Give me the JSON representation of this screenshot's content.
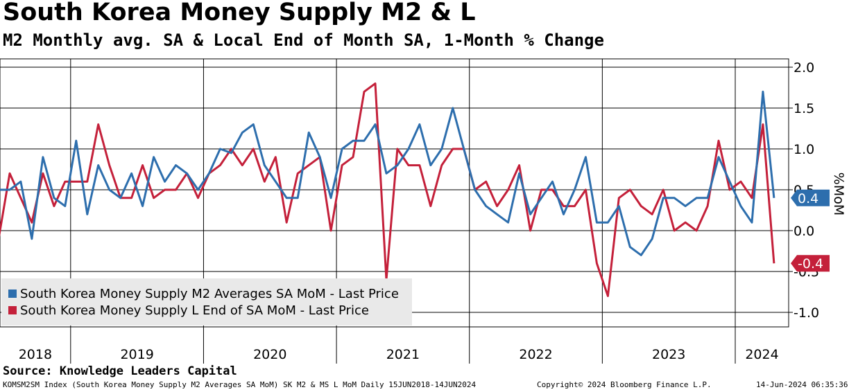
{
  "title": "South Korea Money Supply M2 & L",
  "subtitle": "M2 Monthly avg. SA & Local End of Month SA, 1-Month % Change",
  "source": "Source: Knowledge Leaders Capital",
  "footer": {
    "left": "KOMSM2SM Index (South Korea Money Supply M2 Averages SA MoM) SK M2 & MS L MoM  Daily 15JUN2018-14JUN2024",
    "center": "Copyright© 2024 Bloomberg Finance L.P.",
    "right": "14-Jun-2024 06:35:36"
  },
  "chart_data": {
    "type": "line",
    "ylabel": "%MoM",
    "ylim": [
      -1.2,
      2.0
    ],
    "yticks": [
      -1.0,
      -0.5,
      0.0,
      0.5,
      1.0,
      1.5,
      2.0
    ],
    "ytick_labels": [
      "-1.0",
      "-0.5",
      "0.0",
      "0.5",
      "1.0",
      "1.5",
      "2.0"
    ],
    "x_label_years": [
      "2018",
      "2019",
      "2020",
      "2021",
      "2022",
      "2023",
      "2024"
    ],
    "x_start": "2018-06",
    "grid": true,
    "legend_position": "bottom-left",
    "series": [
      {
        "name": "South Korea Money Supply M2 Averages SA MoM - Last Price",
        "color": "#2d6ead",
        "last_value_label": "0.4",
        "values": [
          0.5,
          0.5,
          0.6,
          -0.1,
          0.9,
          0.4,
          0.3,
          1.1,
          0.2,
          0.8,
          0.5,
          0.4,
          0.7,
          0.3,
          0.9,
          0.6,
          0.8,
          0.7,
          0.5,
          0.7,
          1.0,
          0.95,
          1.2,
          1.3,
          0.8,
          0.6,
          0.4,
          0.4,
          1.2,
          0.9,
          0.4,
          1.0,
          1.1,
          1.1,
          1.3,
          0.7,
          0.8,
          1.0,
          1.3,
          0.8,
          1.0,
          1.5,
          1.0,
          0.5,
          0.3,
          0.2,
          0.1,
          0.7,
          0.2,
          0.4,
          0.6,
          0.2,
          0.5,
          0.9,
          0.1,
          0.1,
          0.3,
          -0.2,
          -0.3,
          -0.1,
          0.4,
          0.4,
          0.3,
          0.4,
          0.4,
          0.9,
          0.6,
          0.3,
          0.1,
          1.7,
          0.4
        ]
      },
      {
        "name": "South Korea Money Supply L End of SA MoM - Last Price",
        "color": "#c4203a",
        "last_value_label": "-0.4",
        "values": [
          -0.1,
          0.7,
          0.4,
          0.1,
          0.7,
          0.3,
          0.6,
          0.6,
          0.6,
          1.3,
          0.8,
          0.4,
          0.4,
          0.8,
          0.4,
          0.5,
          0.5,
          0.7,
          0.4,
          0.7,
          0.8,
          1.0,
          0.8,
          1.0,
          0.6,
          0.9,
          0.1,
          0.7,
          0.8,
          0.9,
          0.0,
          0.8,
          0.9,
          1.7,
          1.8,
          -0.6,
          1.0,
          0.8,
          0.8,
          0.3,
          0.8,
          1.0,
          1.0,
          0.5,
          0.6,
          0.3,
          0.5,
          0.8,
          0.0,
          0.5,
          0.5,
          0.3,
          0.3,
          0.5,
          -0.4,
          -0.8,
          0.4,
          0.5,
          0.3,
          0.2,
          0.5,
          0.0,
          0.1,
          0.0,
          0.3,
          1.1,
          0.5,
          0.6,
          0.4,
          1.3,
          -0.4
        ]
      }
    ]
  }
}
